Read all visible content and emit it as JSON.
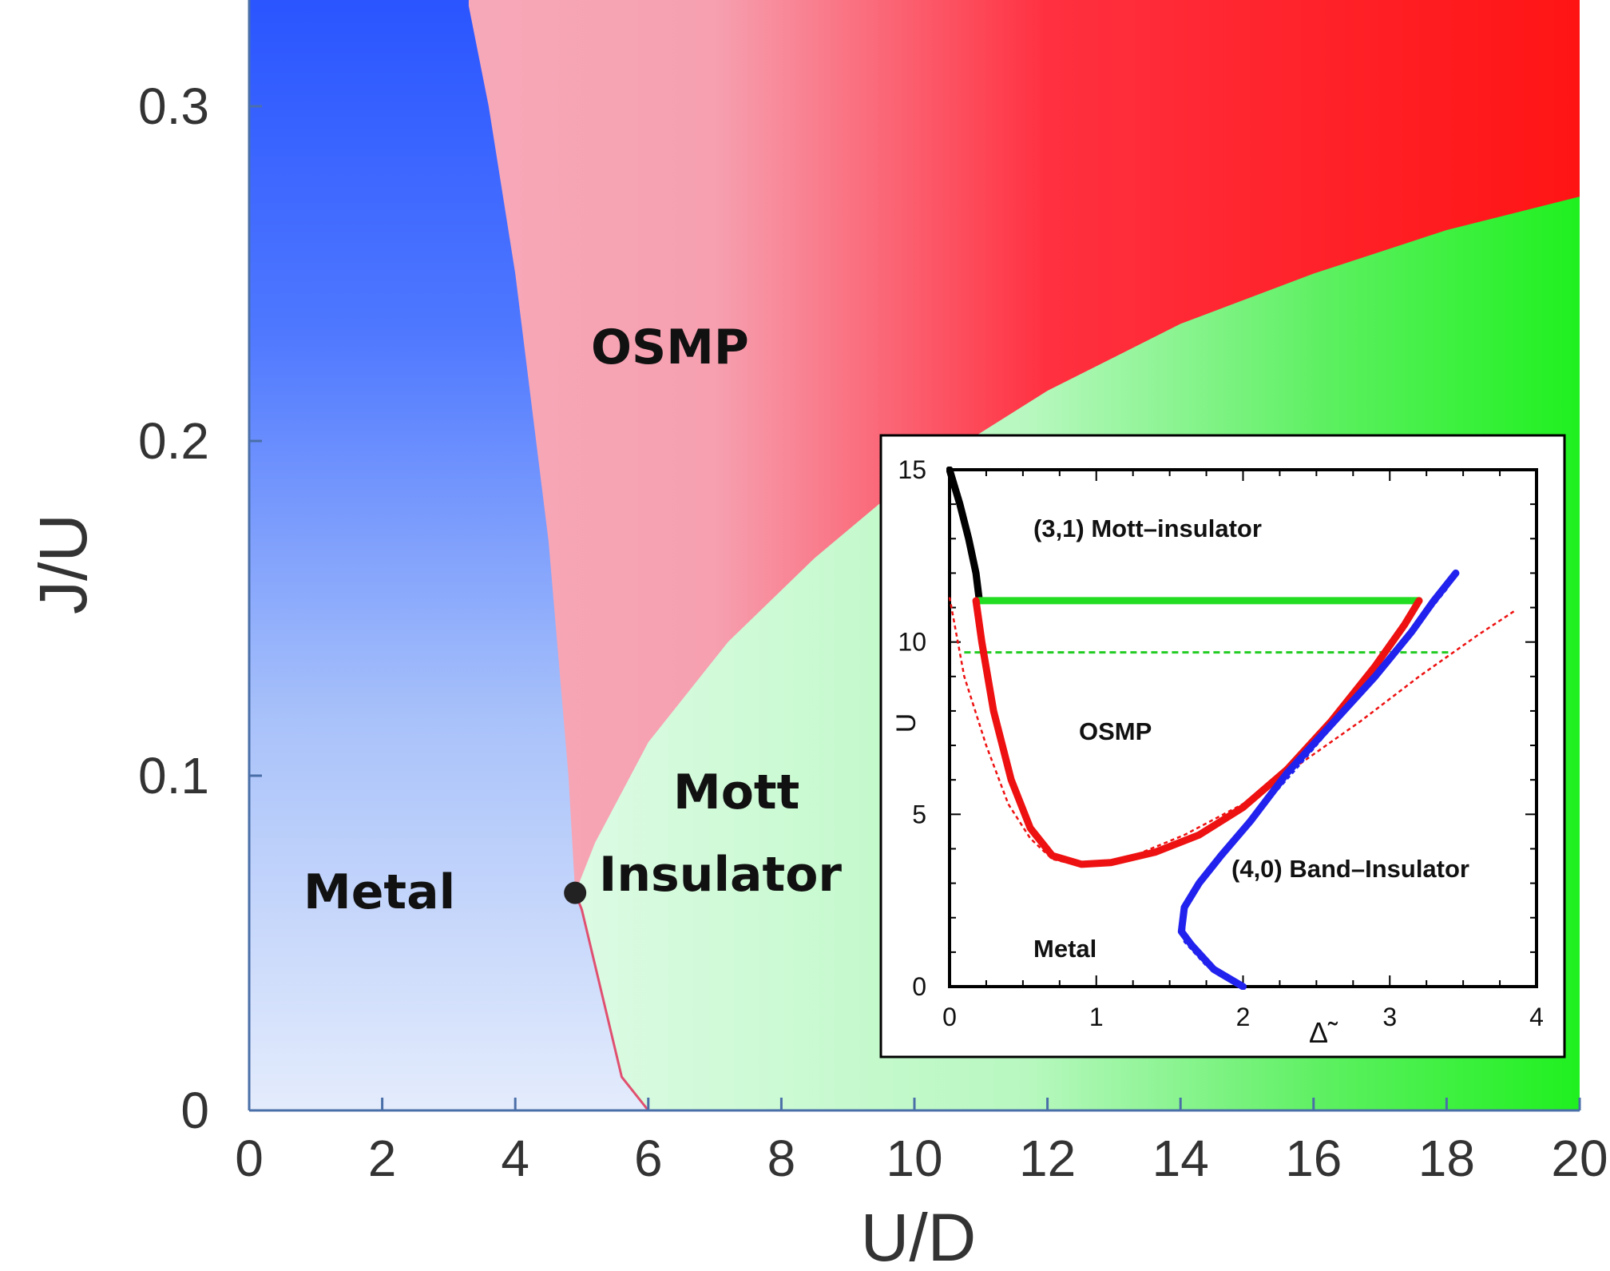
{
  "chart_data": [
    {
      "type": "heatmap",
      "title": "",
      "xlabel": "U/D",
      "ylabel": "J/U",
      "xlim": [
        0,
        20
      ],
      "ylim": [
        0,
        0.33
      ],
      "xticks": [
        "0",
        "2",
        "4",
        "6",
        "8",
        "10",
        "12",
        "14",
        "16",
        "18",
        "20"
      ],
      "yticks": [
        "0",
        "0.1",
        "0.2",
        "0.3"
      ],
      "colors": {
        "metal": "#2a55ff",
        "osmp": "#ff1a1a",
        "mott": "#22ee22",
        "boundary": "#e05070"
      },
      "regions": [
        {
          "name": "Metal",
          "color": "#2a55ff"
        },
        {
          "name": "OSMP",
          "color": "#ff1a1a"
        },
        {
          "name": "Mott",
          "name2": "Insulator",
          "color": "#22ee22"
        }
      ],
      "metal_boundary": [
        [
          6.0,
          0.0
        ],
        [
          5.6,
          0.01
        ],
        [
          5.3,
          0.035
        ],
        [
          5.0,
          0.06
        ],
        [
          4.9,
          0.065
        ],
        [
          4.8,
          0.1
        ],
        [
          4.5,
          0.17
        ],
        [
          4.0,
          0.25
        ],
        [
          3.6,
          0.3
        ],
        [
          3.3,
          0.33
        ]
      ],
      "mott_boundary": [
        [
          4.9,
          0.065
        ],
        [
          5.2,
          0.08
        ],
        [
          6.0,
          0.11
        ],
        [
          7.2,
          0.14
        ],
        [
          8.5,
          0.165
        ],
        [
          10.0,
          0.19
        ],
        [
          12.0,
          0.215
        ],
        [
          14.0,
          0.235
        ],
        [
          16.0,
          0.25
        ],
        [
          18.0,
          0.263
        ],
        [
          20.0,
          0.273
        ]
      ],
      "critical_point": {
        "x": 4.9,
        "y": 0.065
      }
    },
    {
      "type": "line",
      "xlabel": "Δ̃",
      "ylabel": "U",
      "xlim": [
        0,
        4
      ],
      "ylim": [
        0,
        15
      ],
      "xticks": [
        "0",
        "1",
        "2",
        "3",
        "4"
      ],
      "yticks": [
        "0",
        "5",
        "10",
        "15"
      ],
      "labels": {
        "mott": "(3,1) Mott–insulator",
        "osmp": "OSMP",
        "band": "(4,0)  Band–Insulator",
        "metal": "Metal"
      },
      "series": [
        {
          "color": "#000000",
          "style": "solid-thick",
          "points": [
            [
              0.0,
              15.0
            ],
            [
              0.07,
              14.0
            ],
            [
              0.13,
              13.0
            ],
            [
              0.18,
              12.0
            ],
            [
              0.2,
              11.3
            ]
          ]
        },
        {
          "color": "#22dd22",
          "style": "solid-thick",
          "points": [
            [
              0.2,
              11.2
            ],
            [
              3.2,
              11.2
            ]
          ]
        },
        {
          "color": "#22cc22",
          "style": "dashed",
          "points": [
            [
              0.1,
              9.7
            ],
            [
              3.4,
              9.7
            ]
          ]
        },
        {
          "color": "#ee1111",
          "style": "solid-thick",
          "points": [
            [
              0.18,
              11.2
            ],
            [
              0.22,
              10.0
            ],
            [
              0.3,
              8.0
            ],
            [
              0.42,
              6.0
            ],
            [
              0.55,
              4.6
            ],
            [
              0.7,
              3.8
            ],
            [
              0.9,
              3.55
            ],
            [
              1.1,
              3.6
            ],
            [
              1.4,
              3.9
            ],
            [
              1.7,
              4.4
            ],
            [
              2.0,
              5.2
            ],
            [
              2.3,
              6.3
            ],
            [
              2.6,
              7.7
            ],
            [
              2.9,
              9.3
            ],
            [
              3.1,
              10.5
            ],
            [
              3.2,
              11.2
            ]
          ]
        },
        {
          "color": "#ee1111",
          "style": "dotted",
          "points": [
            [
              0.0,
              11.3
            ],
            [
              0.1,
              9.0
            ],
            [
              0.25,
              7.0
            ],
            [
              0.4,
              5.3
            ],
            [
              0.55,
              4.3
            ],
            [
              0.7,
              3.7
            ],
            [
              0.9,
              3.5
            ],
            [
              1.2,
              3.7
            ],
            [
              1.6,
              4.4
            ],
            [
              2.0,
              5.3
            ],
            [
              2.4,
              6.5
            ],
            [
              2.8,
              7.7
            ],
            [
              3.2,
              9.0
            ],
            [
              3.6,
              10.2
            ],
            [
              3.85,
              10.9
            ]
          ]
        },
        {
          "color": "#2222ee",
          "style": "solid-thick",
          "points": [
            [
              2.0,
              0.0
            ],
            [
              1.8,
              0.5
            ],
            [
              1.65,
              1.2
            ],
            [
              1.58,
              1.6
            ],
            [
              1.6,
              2.3
            ],
            [
              1.7,
              3.0
            ],
            [
              1.85,
              3.8
            ],
            [
              2.05,
              4.8
            ],
            [
              2.3,
              6.2
            ],
            [
              2.6,
              7.6
            ],
            [
              2.9,
              9.0
            ],
            [
              3.15,
              10.3
            ],
            [
              3.3,
              11.2
            ],
            [
              3.45,
              12.0
            ]
          ]
        },
        {
          "color": "#2222ee",
          "style": "dotted",
          "points": [
            [
              2.0,
              0.0
            ],
            [
              1.75,
              0.6
            ],
            [
              1.6,
              1.3
            ],
            [
              1.6,
              2.2
            ],
            [
              1.72,
              3.0
            ],
            [
              1.9,
              4.0
            ],
            [
              2.15,
              5.3
            ],
            [
              2.4,
              6.5
            ],
            [
              2.7,
              8.0
            ],
            [
              3.0,
              9.4
            ],
            [
              3.25,
              10.8
            ],
            [
              3.4,
              11.6
            ]
          ]
        }
      ]
    }
  ]
}
